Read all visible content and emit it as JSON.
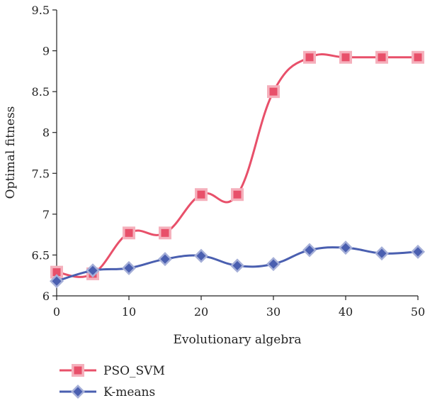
{
  "chart_data": {
    "type": "line",
    "title": "",
    "xlabel": "Evolutionary algebra",
    "ylabel": "Optimal fitness",
    "xlim": [
      0,
      50
    ],
    "ylim": [
      6,
      9.5
    ],
    "x_ticks": [
      "0",
      "10",
      "20",
      "30",
      "40",
      "50"
    ],
    "y_ticks": [
      "6",
      "6.5",
      "7",
      "7.5",
      "8",
      "8.5",
      "9",
      "9.5"
    ],
    "x": [
      0,
      5,
      10,
      15,
      20,
      25,
      30,
      35,
      40,
      45,
      50
    ],
    "series": [
      {
        "name": "PSO_SVM",
        "color": "#e8506a",
        "marker": "square",
        "values": [
          6.29,
          6.27,
          6.77,
          6.77,
          7.24,
          7.24,
          8.5,
          8.92,
          8.92,
          8.92,
          8.92
        ]
      },
      {
        "name": "K-means",
        "color": "#4a5fb0",
        "marker": "diamond",
        "values": [
          6.18,
          6.31,
          6.34,
          6.45,
          6.49,
          6.37,
          6.39,
          6.56,
          6.59,
          6.52,
          6.54
        ]
      }
    ],
    "grid": false,
    "legend_position": "bottom-left"
  }
}
